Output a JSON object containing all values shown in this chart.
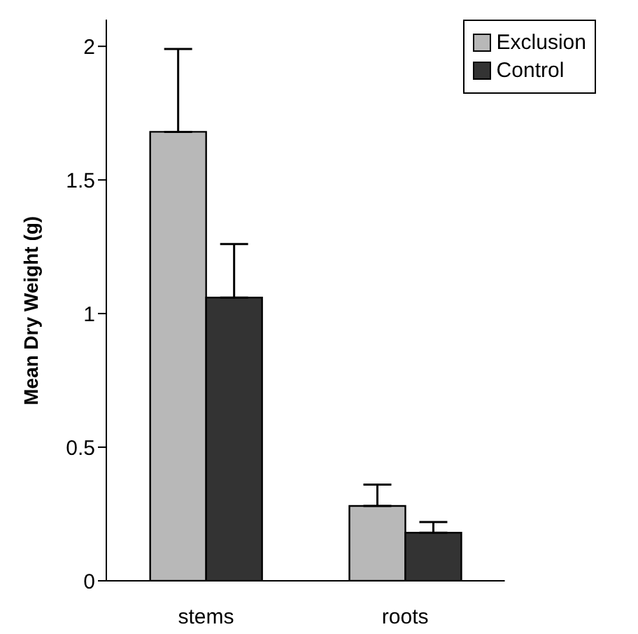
{
  "chart_data": {
    "type": "bar",
    "ylabel": "Mean Dry Weight (g)",
    "categories": [
      "stems",
      "roots"
    ],
    "series": [
      {
        "name": "Exclusion",
        "color": "#b8b8b8",
        "values": [
          1.68,
          0.28
        ],
        "errors": [
          [
            1.68,
            1.99
          ],
          [
            0.28,
            0.36
          ]
        ]
      },
      {
        "name": "Control",
        "color": "#333333",
        "values": [
          1.06,
          0.18
        ],
        "errors": [
          [
            1.06,
            1.26
          ],
          [
            0.18,
            0.22
          ]
        ]
      }
    ],
    "ylim": [
      0,
      2.1
    ],
    "yticks": [
      0,
      0.5,
      1,
      1.5,
      2
    ],
    "grid": false,
    "legend": "top right"
  }
}
